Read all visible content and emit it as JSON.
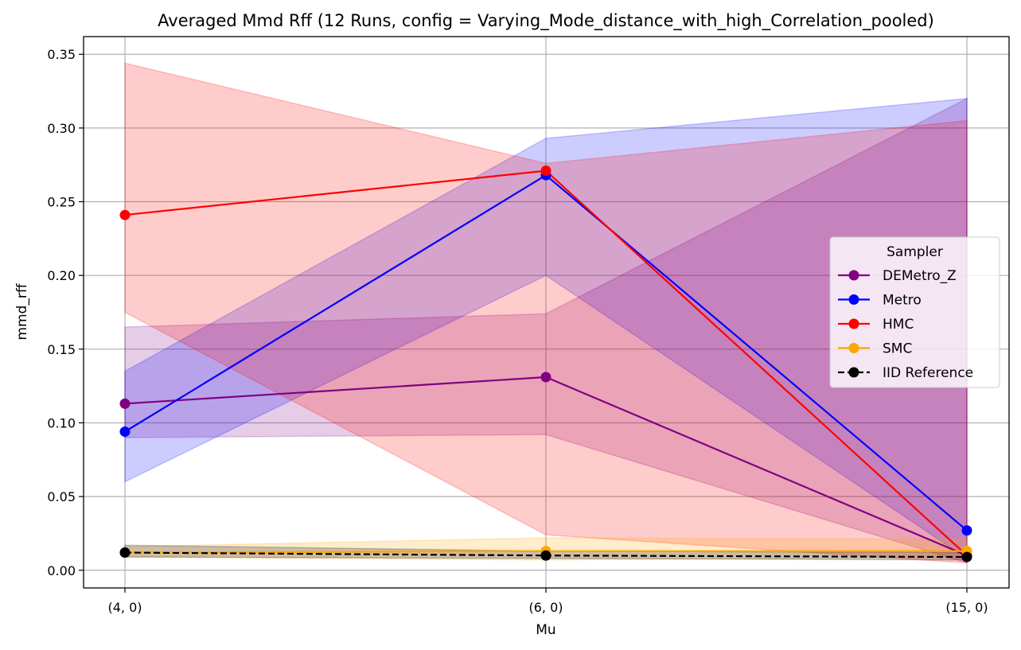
{
  "chart_data": {
    "type": "line",
    "title": "Averaged Mmd Rff (12 Runs, config = Varying_Mode_distance_with_high_Correlation_pooled)",
    "xlabel": "Mu",
    "ylabel": "mmd_rff",
    "categories": [
      "(4, 0)",
      "(6, 0)",
      "(15, 0)"
    ],
    "ylim": [
      -0.012,
      0.362
    ],
    "yticks": [
      0.0,
      0.05,
      0.1,
      0.15,
      0.2,
      0.25,
      0.3,
      0.35
    ],
    "ytick_labels": [
      "0.00",
      "0.05",
      "0.10",
      "0.15",
      "0.20",
      "0.25",
      "0.30",
      "0.35"
    ],
    "grid": true,
    "legend": {
      "title": "Sampler",
      "position": "center-right"
    },
    "series": [
      {
        "name": "DEMetro_Z",
        "color": "#800080",
        "dashed": false,
        "values": [
          0.113,
          0.131,
          0.01
        ],
        "lower": [
          0.09,
          0.092,
          0.005
        ],
        "upper": [
          0.165,
          0.174,
          0.32
        ]
      },
      {
        "name": "Metro",
        "color": "#0000ff",
        "dashed": false,
        "values": [
          0.094,
          0.268,
          0.027
        ],
        "lower": [
          0.06,
          0.2,
          0.008
        ],
        "upper": [
          0.135,
          0.293,
          0.32
        ]
      },
      {
        "name": "HMC",
        "color": "#ff0000",
        "dashed": false,
        "values": [
          0.241,
          0.271,
          0.01
        ],
        "lower": [
          0.175,
          0.024,
          0.005
        ],
        "upper": [
          0.344,
          0.276,
          0.305
        ]
      },
      {
        "name": "SMC",
        "color": "#ffa500",
        "dashed": false,
        "values": [
          0.012,
          0.013,
          0.013
        ],
        "lower": [
          0.009,
          0.007,
          0.009
        ],
        "upper": [
          0.016,
          0.022,
          0.021
        ]
      },
      {
        "name": "IID Reference",
        "color": "#000000",
        "dashed": true,
        "values": [
          0.012,
          0.01,
          0.009
        ],
        "lower": [
          0.009,
          0.008,
          0.007
        ],
        "upper": [
          0.017,
          0.013,
          0.012
        ]
      }
    ]
  }
}
